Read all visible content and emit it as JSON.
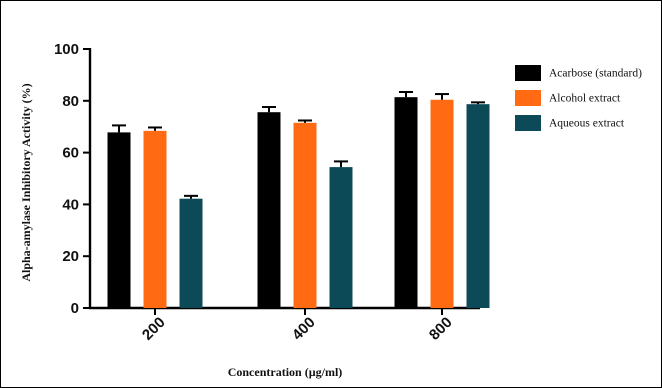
{
  "chart_data": {
    "type": "bar",
    "categories": [
      "200",
      "400",
      "800"
    ],
    "series": [
      {
        "name": "Acarbose (standard)",
        "color": "#000000",
        "values": [
          67.8,
          75.6,
          81.4
        ],
        "errors": [
          2.7,
          2.0,
          2.0
        ]
      },
      {
        "name": "Alcohol extract",
        "color": "#ff6a13",
        "values": [
          68.4,
          71.5,
          80.4
        ],
        "errors": [
          1.3,
          0.9,
          2.2
        ]
      },
      {
        "name": "Aqueous extract",
        "color": "#0c4a57",
        "values": [
          42.2,
          54.4,
          78.7
        ],
        "errors": [
          1.1,
          2.2,
          0.7
        ]
      }
    ],
    "xlabel": "Concentration (µg/ml)",
    "ylabel": "Alpha-amylase Inhibitory Activity (%)",
    "ylim": [
      0,
      100
    ],
    "yticks": [
      0,
      20,
      40,
      60,
      80,
      100
    ],
    "grid": false,
    "legend_position": "top-right"
  }
}
